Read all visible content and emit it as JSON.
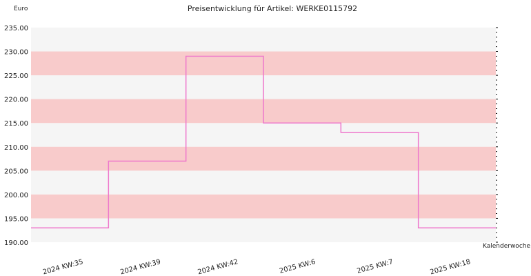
{
  "chart_data": {
    "type": "line",
    "step": true,
    "title": "Preisentwicklung für Artikel: WERKE0115792",
    "ylabel": "Euro",
    "xlabel": "Kalenderwoche",
    "ylim": [
      190,
      235
    ],
    "ytick_step": 5,
    "ytick_labels": [
      "190.00",
      "195.00",
      "200.00",
      "205.00",
      "210.00",
      "215.00",
      "220.00",
      "225.00",
      "230.00",
      "235.00"
    ],
    "categories": [
      "2024 KW:35",
      "2024 KW:39",
      "2024 KW:42",
      "2025 KW:6",
      "2025 KW:7",
      "2025 KW:18"
    ],
    "series": [
      {
        "values": [
          193,
          207,
          229,
          215,
          213,
          193
        ]
      }
    ],
    "colors": {
      "line": "#ee77cc",
      "band": "#f8cbcb",
      "background": "#f5f5f5"
    },
    "grid": true
  }
}
